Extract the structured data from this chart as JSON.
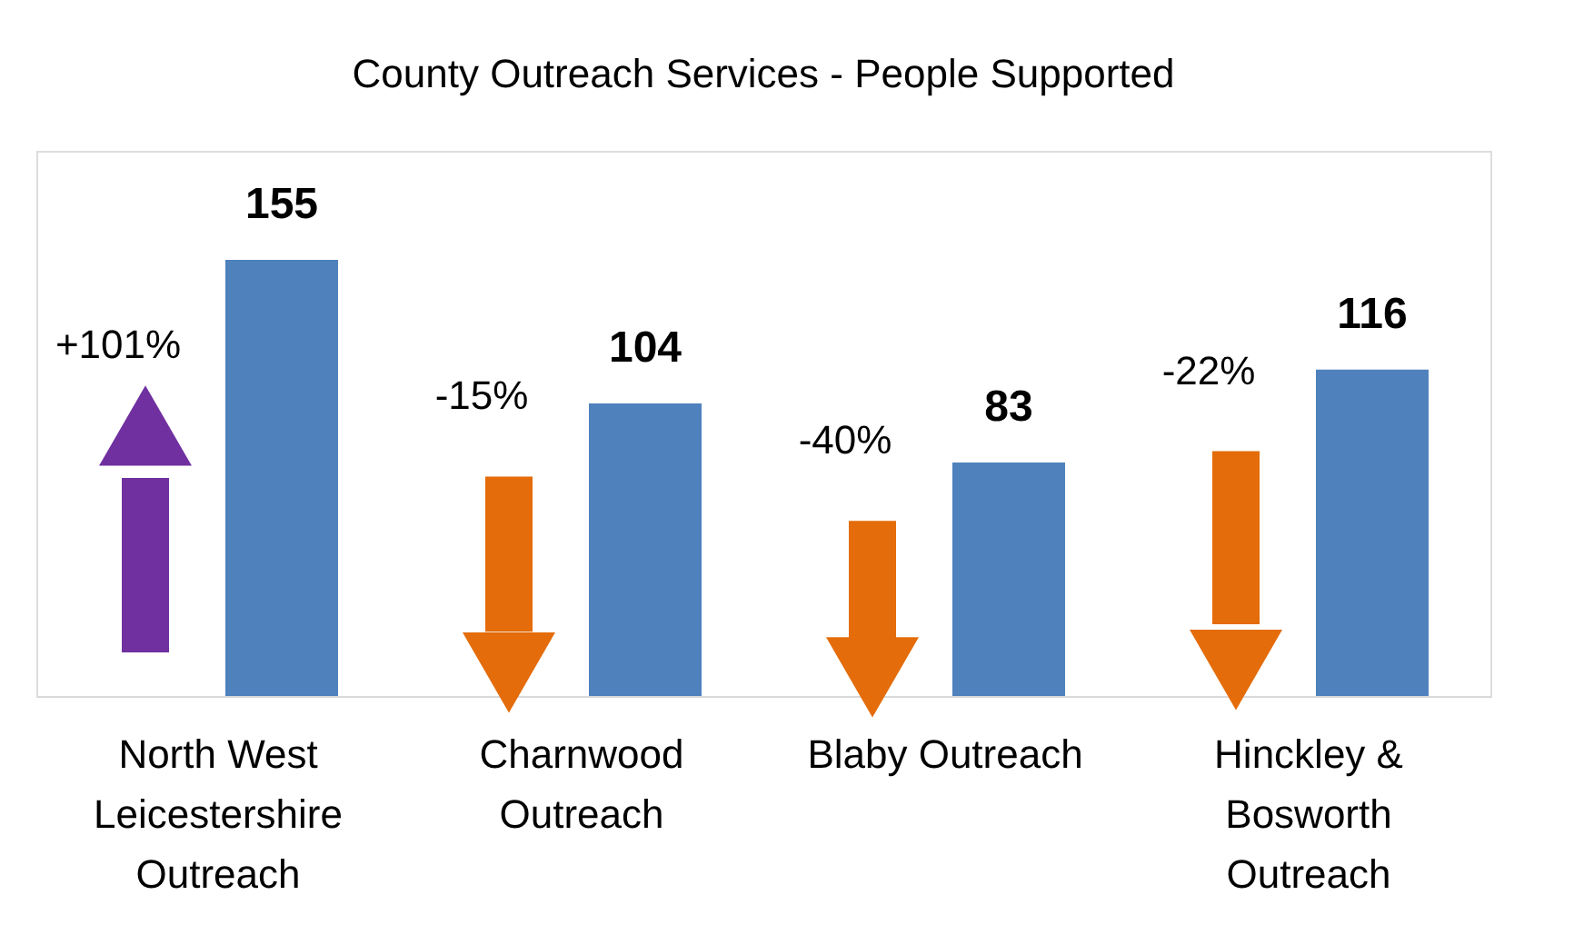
{
  "chart_data": {
    "type": "bar",
    "title": "County Outreach Services - People Supported",
    "categories": [
      "North West Leicestershire Outreach",
      "Charnwood Outreach",
      "Blaby Outreach",
      "Hinckley & Bosworth Outreach"
    ],
    "values": [
      155,
      104,
      83,
      116
    ],
    "color": "#4f81bd",
    "data_labels": true,
    "annotations": [
      "+101%",
      "-15%",
      "-40%",
      "-22%"
    ]
  }
}
